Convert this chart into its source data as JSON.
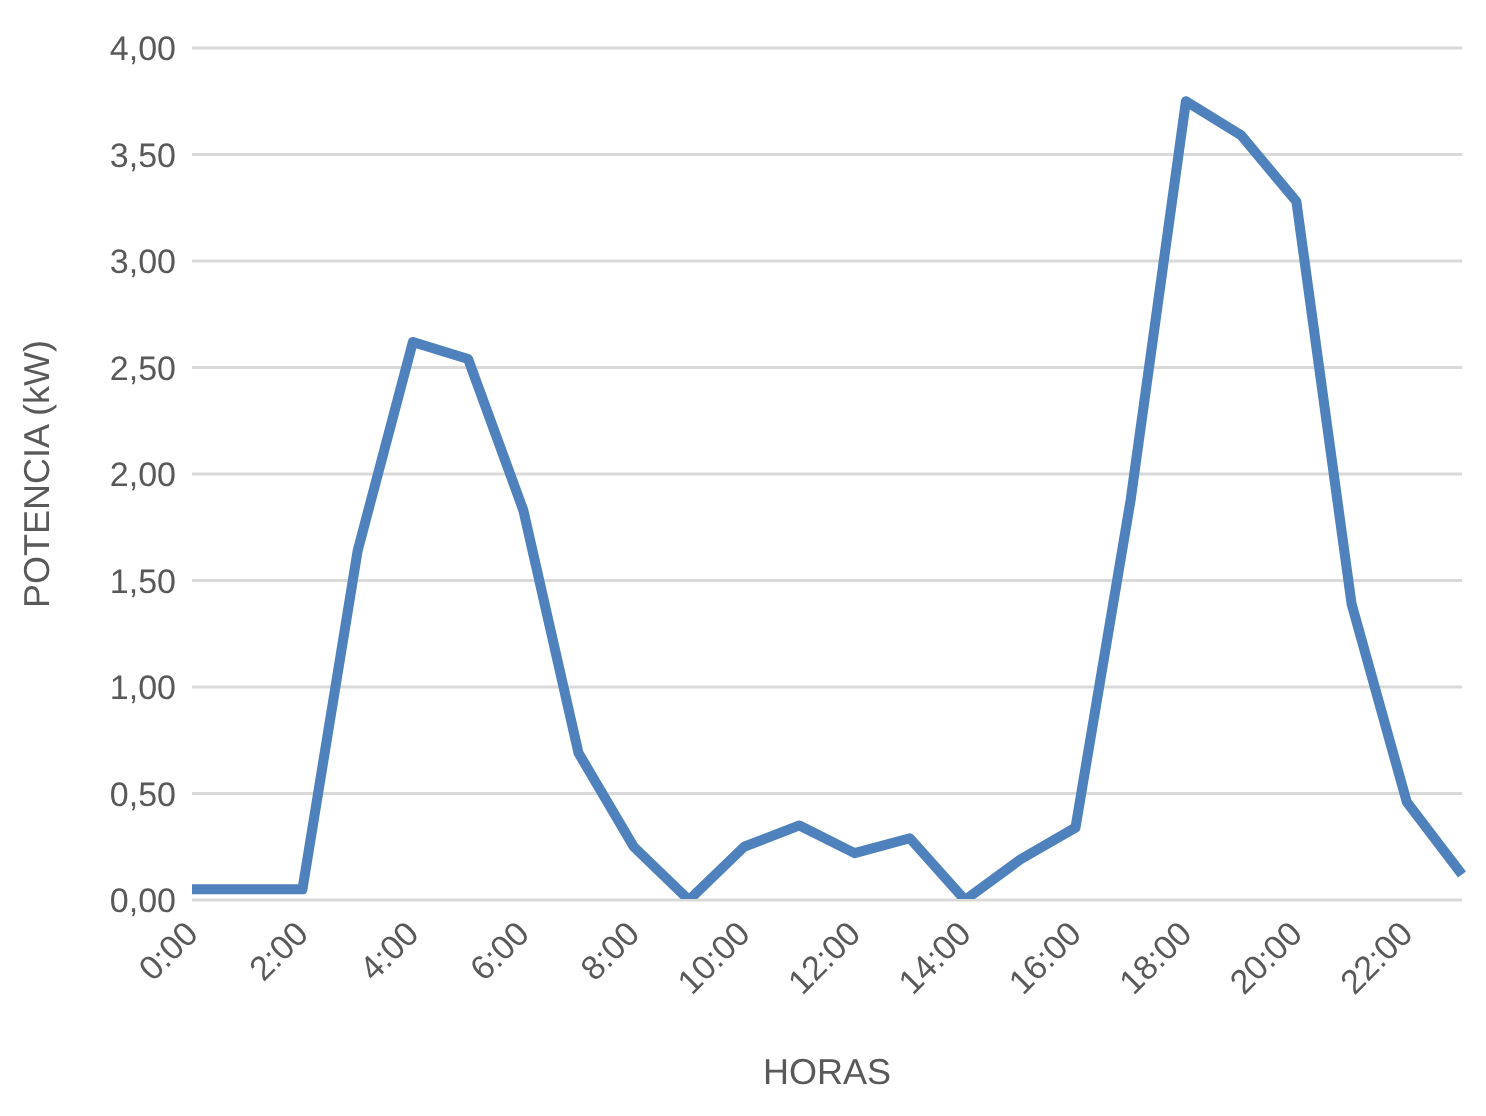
{
  "chart_data": {
    "type": "line",
    "xlabel": "HORAS",
    "ylabel": "POTENCIA (kW)",
    "categories": [
      "0:00",
      null,
      "2:00",
      null,
      "4:00",
      null,
      "6:00",
      null,
      "8:00",
      null,
      "10:00",
      null,
      "12:00",
      null,
      "14:00",
      null,
      "16:00",
      null,
      "18:00",
      null,
      "20:00",
      null,
      "22:00",
      null
    ],
    "series": [
      {
        "color": "#4f81bd",
        "values": [
          0.05,
          0.05,
          0.05,
          1.64,
          2.62,
          2.54,
          1.83,
          0.69,
          0.25,
          0.0,
          0.25,
          0.35,
          0.22,
          0.29,
          0.0,
          0.19,
          0.34,
          1.88,
          3.75,
          3.59,
          3.28,
          1.39,
          0.46,
          0.12
        ]
      }
    ],
    "ylim": [
      0,
      4
    ],
    "yticks": [
      {
        "value": 0,
        "label": "0,00"
      },
      {
        "value": 0.5,
        "label": "0,50"
      },
      {
        "value": 1,
        "label": "1,00"
      },
      {
        "value": 1.5,
        "label": "1,50"
      },
      {
        "value": 2,
        "label": "2,00"
      },
      {
        "value": 2.5,
        "label": "2,50"
      },
      {
        "value": 3,
        "label": "3,00"
      },
      {
        "value": 3.5,
        "label": "3,50"
      },
      {
        "value": 4,
        "label": "4,00"
      }
    ],
    "grid": "y",
    "legend": false,
    "marker": "none",
    "line_style": "solid"
  }
}
